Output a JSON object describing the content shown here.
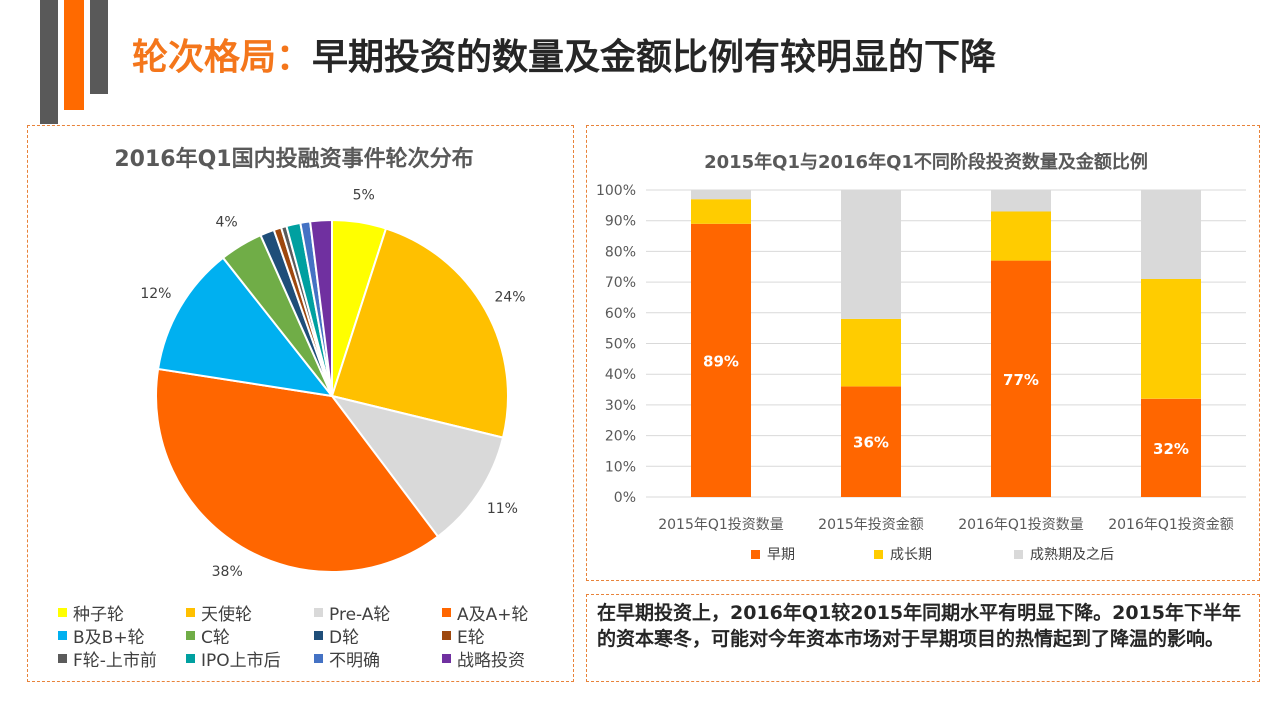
{
  "header": {
    "title_accent": "轮次格局：",
    "title_main": "早期投资的数量及金额比例有较明显的下降"
  },
  "colors": {
    "accent": "#F4761B",
    "bar_dark": "#595959",
    "bar_orange": "#FF6A00"
  },
  "chart_data": [
    {
      "type": "pie",
      "title": "2016年Q1国内投融资事件轮次分布",
      "labels": [
        "种子轮",
        "天使轮",
        "Pre-A轮",
        "A及A+轮",
        "B及B+轮",
        "C轮",
        "D轮",
        "E轮",
        "F轮-上市前",
        "IPO上市后",
        "不明确",
        "战略投资"
      ],
      "values": [
        5,
        24,
        11,
        38,
        12,
        4,
        1.3,
        0.7,
        0.5,
        1.3,
        0.9,
        2.0
      ],
      "value_labels": [
        "5%",
        "24%",
        "11%",
        "38%",
        "12%",
        "4%",
        "",
        "",
        "",
        "",
        "",
        ""
      ],
      "colors": [
        "#FFFF00",
        "#FFC000",
        "#D9D9D9",
        "#FF6600",
        "#00B0F0",
        "#70AD47",
        "#1F4E79",
        "#9E480E",
        "#5B5B5B",
        "#00A0A0",
        "#4472C4",
        "#7030A0"
      ],
      "legend_position": "bottom"
    },
    {
      "type": "bar",
      "stacked": true,
      "title": "2015年Q1与2016年Q1不同阶段投资数量及金额比例",
      "categories": [
        "2015年Q1投资数量",
        "2015年投资金额",
        "2016年Q1投资数量",
        "2016年Q1投资金额"
      ],
      "series": [
        {
          "name": "早期",
          "values": [
            89,
            36,
            77,
            32
          ],
          "color": "#FF6600",
          "labels": [
            "89%",
            "36%",
            "77%",
            "32%"
          ]
        },
        {
          "name": "成长期",
          "values": [
            8,
            22,
            16,
            39
          ],
          "color": "#FFCC00"
        },
        {
          "name": "成熟期及之后",
          "values": [
            3,
            42,
            7,
            29
          ],
          "color": "#D9D9D9"
        }
      ],
      "ylim": [
        0,
        100
      ],
      "y_ticks": [
        "0%",
        "10%",
        "20%",
        "30%",
        "40%",
        "50%",
        "60%",
        "70%",
        "80%",
        "90%",
        "100%"
      ],
      "grid": true,
      "legend_position": "bottom"
    }
  ],
  "note": {
    "text": "在早期投资上，2016年Q1较2015年同期水平有明显下降。2015年下半年的资本寒冬，可能对今年资本市场对于早期项目的热情起到了降温的影响。"
  }
}
